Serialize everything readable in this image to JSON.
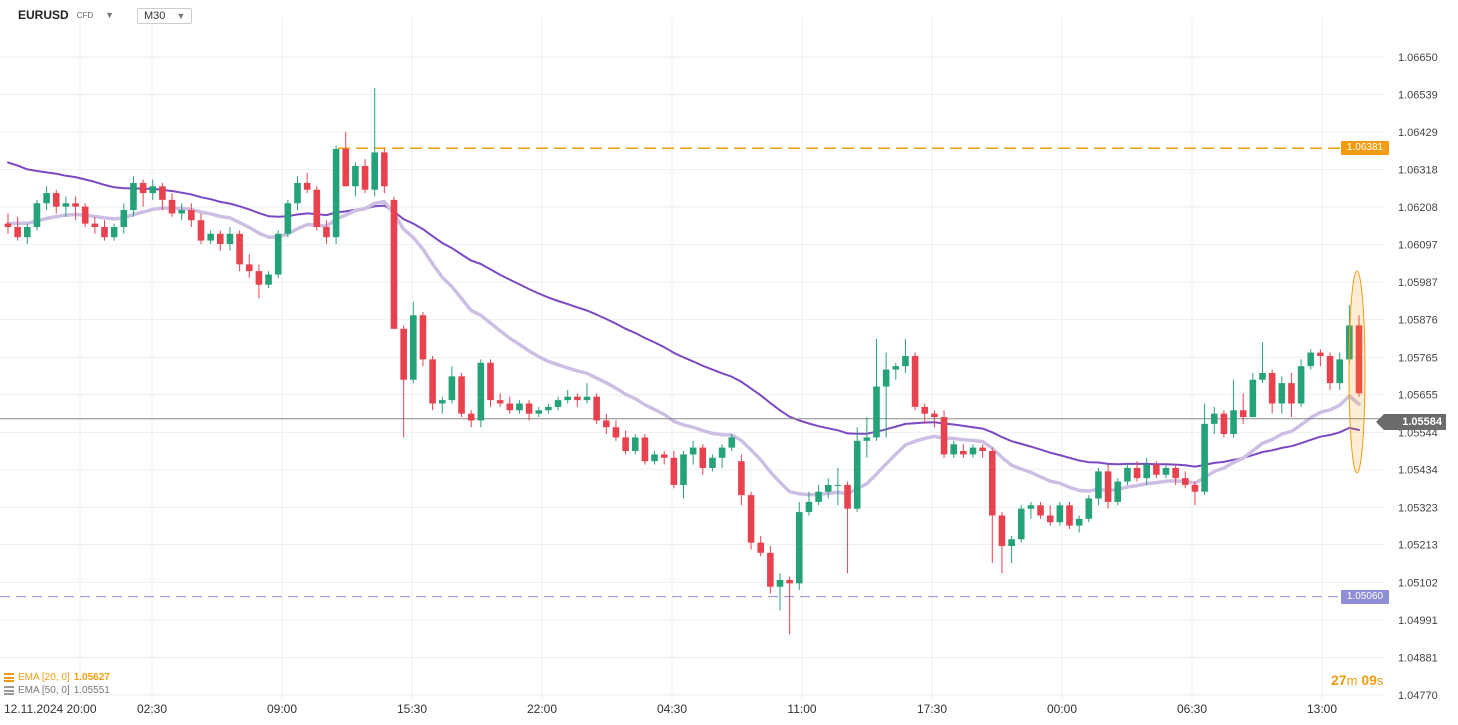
{
  "header": {
    "symbol": "EURUSD",
    "symbol_type": "CFD",
    "timeframe": "M30",
    "dropdown_icon": "caret-down-icon"
  },
  "indicators": [
    {
      "label": "EMA [20, 0]",
      "value": "1.05627",
      "color": "#f39c12"
    },
    {
      "label": "EMA [50, 0]",
      "value": "1.05551",
      "color": "#888888"
    }
  ],
  "timer": {
    "minutes": "27",
    "m": "m",
    "seconds": "09",
    "s": "s"
  },
  "current_price_label": "1.05584",
  "levels": {
    "upper": {
      "label": "1.06381",
      "value": 1.06381,
      "color": "#f39c12"
    },
    "lower": {
      "label": "1.05060",
      "value": 1.0506,
      "color": "#8e8ed6"
    }
  },
  "colors": {
    "up": "#26a27b",
    "down": "#e9424f",
    "ema20": "#cdbfe4",
    "ema50": "#7b49c4",
    "grid": "#efefef",
    "highlight": "#f39c12"
  },
  "chart_data": {
    "type": "candlestick",
    "title": "",
    "xlabel": "",
    "ylabel": "",
    "ylim": [
      1.0477,
      1.06706
    ],
    "grid": true,
    "y_ticks": [
      "1.06650",
      "1.06539",
      "1.06429",
      "1.06318",
      "1.06208",
      "1.06097",
      "1.05987",
      "1.05876",
      "1.05765",
      "1.05655",
      "1.05544",
      "1.05434",
      "1.05323",
      "1.05213",
      "1.05102",
      "1.04991",
      "1.04881",
      "1.04770"
    ],
    "x_labels": [
      "12.11.2024 20:00",
      "02:30",
      "09:00",
      "15:30",
      "22:00",
      "04:30",
      "11:00",
      "17:30",
      "00:00",
      "06:30",
      "13:00"
    ],
    "current_price": 1.05584,
    "candles": [
      [
        1.06159,
        1.06189,
        1.06129,
        1.06149
      ],
      [
        1.06149,
        1.06179,
        1.06109,
        1.06119
      ],
      [
        1.06119,
        1.06159,
        1.06099,
        1.06149
      ],
      [
        1.06149,
        1.06229,
        1.06139,
        1.06219
      ],
      [
        1.06219,
        1.06269,
        1.06199,
        1.06249
      ],
      [
        1.06249,
        1.06259,
        1.06189,
        1.06209
      ],
      [
        1.06209,
        1.06239,
        1.06179,
        1.06219
      ],
      [
        1.06219,
        1.06239,
        1.06169,
        1.06209
      ],
      [
        1.06209,
        1.06219,
        1.06149,
        1.06159
      ],
      [
        1.06159,
        1.06179,
        1.06129,
        1.06149
      ],
      [
        1.06149,
        1.06169,
        1.06109,
        1.06119
      ],
      [
        1.06119,
        1.06159,
        1.06109,
        1.06149
      ],
      [
        1.06149,
        1.06219,
        1.06129,
        1.06199
      ],
      [
        1.06199,
        1.06299,
        1.06179,
        1.06279
      ],
      [
        1.06279,
        1.06289,
        1.06209,
        1.06249
      ],
      [
        1.06249,
        1.06289,
        1.06229,
        1.06269
      ],
      [
        1.06269,
        1.06279,
        1.06199,
        1.06229
      ],
      [
        1.06229,
        1.06249,
        1.06179,
        1.06189
      ],
      [
        1.06189,
        1.06219,
        1.06169,
        1.06199
      ],
      [
        1.06199,
        1.06219,
        1.06149,
        1.06169
      ],
      [
        1.06169,
        1.06189,
        1.06099,
        1.06109
      ],
      [
        1.06109,
        1.06139,
        1.06099,
        1.06129
      ],
      [
        1.06129,
        1.06139,
        1.06079,
        1.06099
      ],
      [
        1.06099,
        1.06149,
        1.06079,
        1.06129
      ],
      [
        1.06129,
        1.06139,
        1.06019,
        1.06039
      ],
      [
        1.06039,
        1.06069,
        1.05999,
        1.06019
      ],
      [
        1.06019,
        1.06039,
        1.05939,
        1.05979
      ],
      [
        1.05979,
        1.06019,
        1.05969,
        1.06009
      ],
      [
        1.06009,
        1.06139,
        1.05999,
        1.06129
      ],
      [
        1.06129,
        1.06229,
        1.06119,
        1.06219
      ],
      [
        1.06219,
        1.06299,
        1.06199,
        1.06279
      ],
      [
        1.06279,
        1.06309,
        1.06249,
        1.06259
      ],
      [
        1.06259,
        1.06269,
        1.06139,
        1.06149
      ],
      [
        1.06149,
        1.06169,
        1.06099,
        1.06119
      ],
      [
        1.06119,
        1.06389,
        1.06099,
        1.06379
      ],
      [
        1.06379,
        1.06429,
        1.06269,
        1.06269
      ],
      [
        1.06269,
        1.06339,
        1.06239,
        1.06329
      ],
      [
        1.06329,
        1.06349,
        1.06249,
        1.06259
      ],
      [
        1.06259,
        1.06559,
        1.06239,
        1.06369
      ],
      [
        1.06369,
        1.06379,
        1.06249,
        1.06269
      ],
      [
        1.06229,
        1.06239,
        1.05849,
        1.05849
      ],
      [
        1.05849,
        1.05859,
        1.05529,
        1.05699
      ],
      [
        1.05699,
        1.05929,
        1.05689,
        1.05889
      ],
      [
        1.05889,
        1.05899,
        1.05739,
        1.05759
      ],
      [
        1.05759,
        1.05769,
        1.05609,
        1.05629
      ],
      [
        1.05629,
        1.05649,
        1.05599,
        1.05639
      ],
      [
        1.05639,
        1.05739,
        1.05629,
        1.05709
      ],
      [
        1.05709,
        1.05719,
        1.05589,
        1.05599
      ],
      [
        1.05599,
        1.05609,
        1.05559,
        1.05579
      ],
      [
        1.05579,
        1.05759,
        1.05559,
        1.05749
      ],
      [
        1.05749,
        1.05759,
        1.05619,
        1.05639
      ],
      [
        1.05639,
        1.05659,
        1.05619,
        1.05629
      ],
      [
        1.05629,
        1.05649,
        1.05599,
        1.05609
      ],
      [
        1.05609,
        1.05639,
        1.05599,
        1.05629
      ],
      [
        1.05629,
        1.05639,
        1.05579,
        1.05599
      ],
      [
        1.05599,
        1.05619,
        1.05589,
        1.05609
      ],
      [
        1.05609,
        1.05629,
        1.05599,
        1.05619
      ],
      [
        1.05619,
        1.05649,
        1.05609,
        1.05639
      ],
      [
        1.05639,
        1.05669,
        1.05629,
        1.05649
      ],
      [
        1.05649,
        1.05659,
        1.05619,
        1.05639
      ],
      [
        1.05639,
        1.05689,
        1.05629,
        1.05649
      ],
      [
        1.05649,
        1.05659,
        1.05569,
        1.05579
      ],
      [
        1.05579,
        1.05599,
        1.05539,
        1.05559
      ],
      [
        1.05559,
        1.05579,
        1.05519,
        1.05529
      ],
      [
        1.05529,
        1.05549,
        1.05479,
        1.05489
      ],
      [
        1.05489,
        1.05539,
        1.05479,
        1.05529
      ],
      [
        1.05529,
        1.05539,
        1.05449,
        1.05459
      ],
      [
        1.05459,
        1.05489,
        1.05449,
        1.05479
      ],
      [
        1.05479,
        1.05489,
        1.05449,
        1.05469
      ],
      [
        1.05469,
        1.05489,
        1.05379,
        1.05389
      ],
      [
        1.05389,
        1.05489,
        1.05349,
        1.05479
      ],
      [
        1.05479,
        1.05519,
        1.05449,
        1.05499
      ],
      [
        1.05499,
        1.05509,
        1.05419,
        1.05439
      ],
      [
        1.05439,
        1.05479,
        1.05429,
        1.05469
      ],
      [
        1.05469,
        1.05509,
        1.05439,
        1.05499
      ],
      [
        1.05499,
        1.05539,
        1.05489,
        1.05529
      ],
      [
        1.05459,
        1.05479,
        1.05329,
        1.05359
      ],
      [
        1.05359,
        1.05369,
        1.05199,
        1.05219
      ],
      [
        1.05219,
        1.05239,
        1.05179,
        1.05189
      ],
      [
        1.05189,
        1.05209,
        1.05069,
        1.05089
      ],
      [
        1.05089,
        1.05129,
        1.05019,
        1.05109
      ],
      [
        1.05109,
        1.05119,
        1.04949,
        1.05099
      ],
      [
        1.05099,
        1.05339,
        1.05079,
        1.05309
      ],
      [
        1.05309,
        1.05369,
        1.05299,
        1.05339
      ],
      [
        1.05339,
        1.05389,
        1.05329,
        1.05369
      ],
      [
        1.05369,
        1.05409,
        1.05349,
        1.05389
      ],
      [
        1.05389,
        1.05439,
        1.05329,
        1.05389
      ],
      [
        1.05389,
        1.05399,
        1.05129,
        1.05319
      ],
      [
        1.05319,
        1.05559,
        1.05309,
        1.05519
      ],
      [
        1.05519,
        1.05589,
        1.05469,
        1.05529
      ],
      [
        1.05529,
        1.05819,
        1.05519,
        1.05679
      ],
      [
        1.05679,
        1.05779,
        1.05529,
        1.05729
      ],
      [
        1.05729,
        1.05749,
        1.05699,
        1.05739
      ],
      [
        1.05739,
        1.05819,
        1.05719,
        1.05769
      ],
      [
        1.05769,
        1.05779,
        1.05609,
        1.05619
      ],
      [
        1.05619,
        1.05629,
        1.05569,
        1.05599
      ],
      [
        1.05599,
        1.05609,
        1.05559,
        1.05589
      ],
      [
        1.05589,
        1.05609,
        1.05469,
        1.05479
      ],
      [
        1.05479,
        1.05519,
        1.05469,
        1.05509
      ],
      [
        1.05489,
        1.05509,
        1.05469,
        1.05479
      ],
      [
        1.05479,
        1.05509,
        1.05469,
        1.05499
      ],
      [
        1.05499,
        1.05509,
        1.05469,
        1.05489
      ],
      [
        1.05489,
        1.05499,
        1.05159,
        1.05299
      ],
      [
        1.05299,
        1.05309,
        1.05129,
        1.05209
      ],
      [
        1.05209,
        1.05239,
        1.05159,
        1.05229
      ],
      [
        1.05229,
        1.05329,
        1.05219,
        1.05319
      ],
      [
        1.05319,
        1.05339,
        1.05289,
        1.05329
      ],
      [
        1.05329,
        1.05339,
        1.05289,
        1.05299
      ],
      [
        1.05299,
        1.05329,
        1.05269,
        1.05279
      ],
      [
        1.05279,
        1.05339,
        1.05269,
        1.05329
      ],
      [
        1.05329,
        1.05339,
        1.05259,
        1.05269
      ],
      [
        1.05269,
        1.05299,
        1.05249,
        1.05289
      ],
      [
        1.05289,
        1.05359,
        1.05279,
        1.05349
      ],
      [
        1.05349,
        1.05439,
        1.05329,
        1.05429
      ],
      [
        1.05429,
        1.05449,
        1.05319,
        1.05339
      ],
      [
        1.05339,
        1.05409,
        1.05329,
        1.05399
      ],
      [
        1.05399,
        1.05449,
        1.05389,
        1.05439
      ],
      [
        1.05439,
        1.05459,
        1.05399,
        1.05409
      ],
      [
        1.05409,
        1.05469,
        1.05389,
        1.05449
      ],
      [
        1.05449,
        1.05459,
        1.05409,
        1.05419
      ],
      [
        1.05419,
        1.05449,
        1.05409,
        1.05439
      ],
      [
        1.05439,
        1.05449,
        1.05389,
        1.05409
      ],
      [
        1.05409,
        1.05429,
        1.05379,
        1.05389
      ],
      [
        1.05389,
        1.05399,
        1.05329,
        1.05369
      ],
      [
        1.05369,
        1.05629,
        1.05359,
        1.05569
      ],
      [
        1.05569,
        1.05619,
        1.05539,
        1.05599
      ],
      [
        1.05599,
        1.05609,
        1.05529,
        1.05539
      ],
      [
        1.05539,
        1.05699,
        1.05529,
        1.05609
      ],
      [
        1.05609,
        1.05659,
        1.05569,
        1.05589
      ],
      [
        1.05589,
        1.05719,
        1.05589,
        1.05699
      ],
      [
        1.05699,
        1.05809,
        1.05689,
        1.05719
      ],
      [
        1.05719,
        1.05729,
        1.05599,
        1.05629
      ],
      [
        1.05629,
        1.05709,
        1.05599,
        1.05689
      ],
      [
        1.05689,
        1.05719,
        1.05589,
        1.05629
      ],
      [
        1.05629,
        1.05759,
        1.05619,
        1.05739
      ],
      [
        1.05739,
        1.05789,
        1.05729,
        1.05779
      ],
      [
        1.05779,
        1.05789,
        1.05739,
        1.05769
      ],
      [
        1.05769,
        1.05779,
        1.05669,
        1.05689
      ],
      [
        1.05689,
        1.05779,
        1.05669,
        1.05759
      ],
      [
        1.05759,
        1.05919,
        1.05749,
        1.05859
      ],
      [
        1.05859,
        1.05889,
        1.05649,
        1.05659
      ]
    ],
    "series": [
      {
        "name": "EMA [20, 0]",
        "values": [
          1.06159,
          1.0616,
          1.0616,
          1.06167,
          1.06174,
          1.0618,
          1.06184,
          1.06186,
          1.06184,
          1.0618,
          1.06176,
          1.06173,
          1.06176,
          1.06186,
          1.06193,
          1.06201,
          1.06205,
          1.06204,
          1.06204,
          1.06201,
          1.06193,
          1.06188,
          1.0618,
          1.06176,
          1.06162,
          1.06148,
          1.06131,
          1.06119,
          1.0612,
          1.06129,
          1.06144,
          1.06156,
          1.06155,
          1.06151,
          1.06173,
          1.06184,
          1.06198,
          1.06203,
          1.06219,
          1.06224,
          1.06188,
          1.06142,
          1.06118,
          1.06084,
          1.0604,
          1.06001,
          1.05973,
          1.05938,
          1.05903,
          1.05889,
          1.05866,
          1.05843,
          1.05821,
          1.05803,
          1.05784,
          1.05767,
          1.05753,
          1.05743,
          1.05734,
          1.05725,
          1.05718,
          1.05704,
          1.0569,
          1.05674,
          1.05656,
          1.05643,
          1.05625,
          1.05611,
          1.05597,
          1.05576,
          1.05566,
          1.05559,
          1.05549,
          1.05541,
          1.05537,
          1.05536,
          1.0552,
          1.05492,
          1.05463,
          1.05427,
          1.05397,
          1.05369,
          1.05363,
          1.0536,
          1.05361,
          1.05364,
          1.05367,
          1.05363,
          1.05378,
          1.05393,
          1.05421,
          1.05451,
          1.0548,
          1.05507,
          1.05518,
          1.05526,
          1.05532,
          1.05527,
          1.05526,
          1.05522,
          1.0552,
          1.05517,
          1.05497,
          1.0547,
          1.05447,
          1.05436,
          1.05426,
          1.05413,
          1.054,
          1.05394,
          1.05382,
          1.05373,
          1.05371,
          1.05376,
          1.05372,
          1.05376,
          1.05383,
          1.05387,
          1.05393,
          1.05396,
          1.054,
          1.05401,
          1.054,
          1.05394,
          1.05411,
          1.05429,
          1.05439,
          1.05455,
          1.05468,
          1.0549,
          1.05512,
          1.05523,
          1.05539,
          1.05547,
          1.05566,
          1.05587,
          1.05603,
          1.0561,
          1.05624,
          1.05651,
          1.05627
        ]
      },
      {
        "name": "EMA [50, 0]",
        "values": [
          1.06339,
          1.0633,
          1.06319,
          1.06314,
          1.0631,
          1.06306,
          1.063,
          1.06296,
          1.06289,
          1.06282,
          1.06273,
          1.06266,
          1.06263,
          1.06263,
          1.06262,
          1.06262,
          1.06258,
          1.06255,
          1.0625,
          1.06245,
          1.06237,
          1.06231,
          1.06223,
          1.06218,
          1.0621,
          1.06201,
          1.0619,
          1.06181,
          1.06179,
          1.06181,
          1.06186,
          1.06189,
          1.06187,
          1.06184,
          1.06192,
          1.06195,
          1.062,
          1.06203,
          1.0621,
          1.06212,
          1.06194,
          1.06172,
          1.06159,
          1.06143,
          1.06122,
          1.06102,
          1.06087,
          1.06068,
          1.0605,
          1.0604,
          1.06024,
          1.06008,
          1.05994,
          1.0598,
          1.05966,
          1.05953,
          1.05941,
          1.05931,
          1.05922,
          1.05912,
          1.05903,
          1.05891,
          1.05878,
          1.05864,
          1.05849,
          1.05837,
          1.05822,
          1.05809,
          1.05795,
          1.05778,
          1.05765,
          1.05753,
          1.0574,
          1.05729,
          1.05718,
          1.05708,
          1.05693,
          1.05673,
          1.05653,
          1.0563,
          1.05609,
          1.0559,
          1.05579,
          1.0557,
          1.05562,
          1.05556,
          1.0555,
          1.05541,
          1.0554,
          1.0554,
          1.05546,
          1.05553,
          1.05561,
          1.05569,
          1.05571,
          1.05573,
          1.05574,
          1.0557,
          1.05567,
          1.05563,
          1.05559,
          1.05555,
          1.05544,
          1.0553,
          1.05518,
          1.0551,
          1.05502,
          1.05493,
          1.05484,
          1.05477,
          1.05469,
          1.05461,
          1.05456,
          1.05455,
          1.05451,
          1.0545,
          1.05451,
          1.05451,
          1.05451,
          1.0545,
          1.0545,
          1.05449,
          1.05447,
          1.05443,
          1.05448,
          1.05454,
          1.05457,
          1.05463,
          1.05468,
          1.05477,
          1.05486,
          1.05491,
          1.05498,
          1.05503,
          1.05512,
          1.05522,
          1.05531,
          1.05536,
          1.05544,
          1.05557,
          1.05551
        ]
      }
    ]
  }
}
